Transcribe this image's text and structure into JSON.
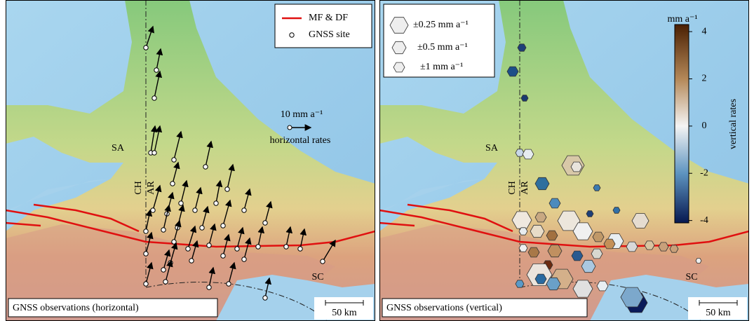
{
  "panels": [
    {
      "title": "GNSS observations (horizontal)",
      "legend": [
        "MF & DF",
        "GNSS site"
      ],
      "scale_vector": "10 mm a⁻¹",
      "scale_vector_label": "horizontal rates",
      "places": [
        "SA",
        "CH",
        "AR",
        "SC"
      ],
      "scalebar": "50 km"
    },
    {
      "title": "GNSS observations (vertical)",
      "legend": [
        "±0.25 mm a⁻¹",
        "±0.5 mm a⁻¹",
        "±1 mm a⁻¹"
      ],
      "places": [
        "SA",
        "CH",
        "AR",
        "SC"
      ],
      "scalebar": "50 km",
      "colorbar": {
        "label": "vertical rates",
        "unit": "mm a⁻¹",
        "lim": [
          -4.1,
          4.3
        ],
        "ticks": [
          4,
          2,
          0,
          -2,
          -4
        ]
      }
    }
  ]
}
